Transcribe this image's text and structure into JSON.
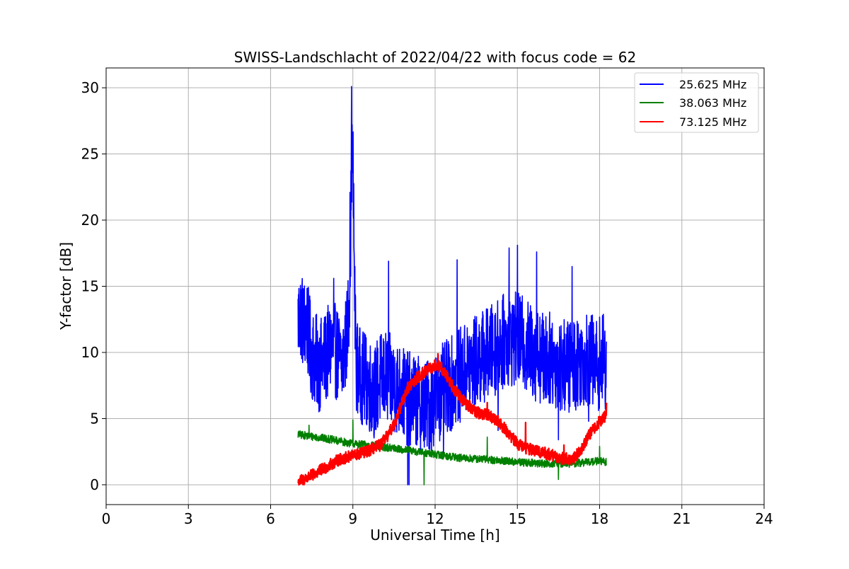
{
  "chart_data": {
    "type": "line",
    "title": "SWISS-Landschlacht of 2022/04/22 with focus code = 62",
    "xlabel": "Universal Time [h]",
    "ylabel": "Y-factor [dB]",
    "xlim": [
      0,
      24
    ],
    "ylim": [
      -1.5,
      31.5
    ],
    "xticks": [
      0,
      3,
      6,
      9,
      12,
      15,
      18,
      21,
      24
    ],
    "yticks": [
      0,
      5,
      10,
      15,
      20,
      25,
      30
    ],
    "grid": true,
    "legend_position": "top-right",
    "series": [
      {
        "name": "25.625 MHz",
        "color": "#0000ff",
        "noise": 3.6,
        "x": [
          7.0,
          7.1,
          7.2,
          7.3,
          7.4,
          7.5,
          7.6,
          7.8,
          8.0,
          8.2,
          8.4,
          8.6,
          8.8,
          8.9,
          8.95,
          9.0,
          9.05,
          9.1,
          9.2,
          9.4,
          9.6,
          9.8,
          10.0,
          10.2,
          10.3,
          10.5,
          10.8,
          11.0,
          11.2,
          11.5,
          11.8,
          12.0,
          12.2,
          12.5,
          12.8,
          13.0,
          13.3,
          13.6,
          14.0,
          14.3,
          14.6,
          15.0,
          15.3,
          15.6,
          16.0,
          16.3,
          16.6,
          17.0,
          17.3,
          17.6,
          17.9,
          18.1,
          18.25
        ],
        "y": [
          12.5,
          13.0,
          12.0,
          12.5,
          11.0,
          10.0,
          9.5,
          9.0,
          9.5,
          10.5,
          10.0,
          9.0,
          11.5,
          16.0,
          24.0,
          25.0,
          17.0,
          9.5,
          8.5,
          8.0,
          7.5,
          7.0,
          8.0,
          8.0,
          8.0,
          7.5,
          7.0,
          6.5,
          6.5,
          6.0,
          6.0,
          6.5,
          7.0,
          7.5,
          8.0,
          8.5,
          9.0,
          9.5,
          10.0,
          10.5,
          11.0,
          11.0,
          10.5,
          10.0,
          9.5,
          9.5,
          9.0,
          9.0,
          9.5,
          9.5,
          9.0,
          9.5,
          9.0
        ],
        "spikes": [
          [
            8.95,
            30.1
          ],
          [
            8.9,
            22.1
          ],
          [
            8.3,
            15.6
          ],
          [
            9.1,
            14.2
          ],
          [
            10.3,
            16.9
          ],
          [
            12.8,
            17.0
          ],
          [
            14.7,
            17.9
          ],
          [
            15.0,
            18.1
          ],
          [
            15.7,
            17.6
          ],
          [
            17.0,
            16.5
          ],
          [
            11.0,
            0.0
          ],
          [
            11.05,
            0.0
          ],
          [
            12.3,
            2.2
          ],
          [
            14.3,
            4.1
          ],
          [
            16.5,
            3.4
          ],
          [
            17.6,
            4.8
          ]
        ]
      },
      {
        "name": "38.063 MHz",
        "color": "#008000",
        "noise": 0.3,
        "x": [
          7.0,
          8.0,
          9.0,
          10.0,
          11.0,
          12.0,
          13.0,
          14.0,
          15.0,
          16.0,
          17.0,
          18.0,
          18.25
        ],
        "y": [
          3.8,
          3.5,
          3.1,
          2.9,
          2.6,
          2.3,
          2.0,
          1.9,
          1.7,
          1.6,
          1.6,
          1.8,
          1.7
        ],
        "spikes": [
          [
            9.0,
            4.9
          ],
          [
            11.6,
            0.0
          ],
          [
            13.9,
            3.6
          ],
          [
            7.4,
            4.5
          ],
          [
            16.5,
            0.4
          ],
          [
            18.0,
            2.9
          ]
        ]
      },
      {
        "name": "73.125 MHz",
        "color": "#ff0000",
        "noise": 0.45,
        "x": [
          7.0,
          7.5,
          8.0,
          8.5,
          9.0,
          9.5,
          10.0,
          10.3,
          10.6,
          10.8,
          11.0,
          11.3,
          11.6,
          12.0,
          12.2,
          12.5,
          12.8,
          13.2,
          13.6,
          14.0,
          14.3,
          14.6,
          15.0,
          15.3,
          15.6,
          16.0,
          16.3,
          16.6,
          17.0,
          17.3,
          17.6,
          18.0,
          18.25
        ],
        "y": [
          0.2,
          0.7,
          1.3,
          1.9,
          2.2,
          2.5,
          3.0,
          3.8,
          5.0,
          6.3,
          7.3,
          8.0,
          8.5,
          9.0,
          8.9,
          8.0,
          6.9,
          6.0,
          5.4,
          5.2,
          4.8,
          4.1,
          3.1,
          2.8,
          2.6,
          2.4,
          2.2,
          2.0,
          1.9,
          2.6,
          3.7,
          4.8,
          5.2
        ],
        "spikes": [
          [
            13.9,
            6.2
          ],
          [
            15.3,
            4.7
          ],
          [
            16.7,
            3.0
          ],
          [
            18.25,
            6.2
          ],
          [
            12.1,
            9.9
          ]
        ]
      }
    ]
  }
}
